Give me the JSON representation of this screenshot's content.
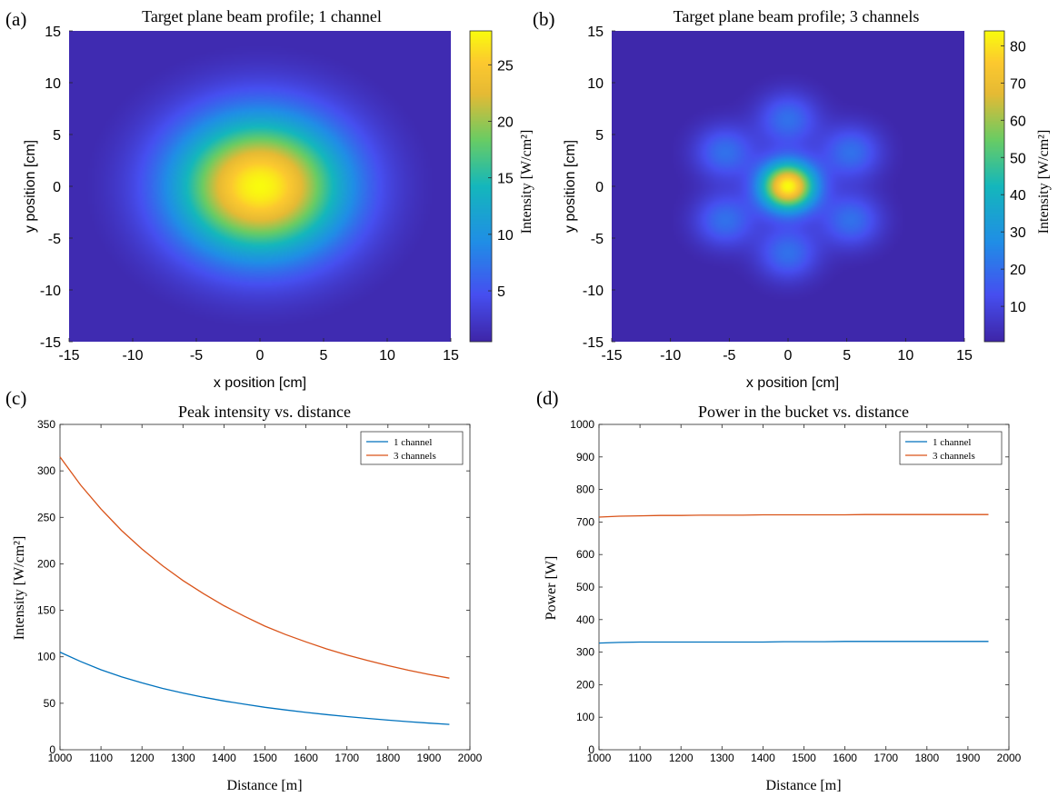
{
  "panels": {
    "a": {
      "tag": "(a)",
      "chart_data": {
        "type": "heatmap",
        "title": "Target plane beam profile; 1 channel",
        "xlabel": "x position [cm]",
        "ylabel": "y position [cm]",
        "colorbar_label": "Intensity [W/cm²]",
        "xlim": [
          -15,
          15
        ],
        "ylim": [
          -15,
          15
        ],
        "xticks": [
          -15,
          -10,
          -5,
          0,
          5,
          10,
          15
        ],
        "yticks": [
          -15,
          -10,
          -5,
          0,
          5,
          10,
          15
        ],
        "clim": [
          0.5,
          28
        ],
        "colorbar_ticks": [
          5,
          10,
          15,
          20,
          25
        ],
        "colormap": "parula",
        "peak_intensity": 28,
        "lobes": [
          {
            "x": 0,
            "y": 0,
            "width": 4.9,
            "amplitude": 1.0
          }
        ]
      }
    },
    "b": {
      "tag": "(b)",
      "chart_data": {
        "type": "heatmap",
        "title": "Target plane beam profile; 3 channels",
        "xlabel": "x position [cm]",
        "ylabel": "y position [cm]",
        "colorbar_label": "Intensity [W/cm²]",
        "xlim": [
          -15,
          15
        ],
        "ylim": [
          -15,
          15
        ],
        "xticks": [
          -15,
          -10,
          -5,
          0,
          5,
          10,
          15
        ],
        "yticks": [
          -15,
          -10,
          -5,
          0,
          5,
          10,
          15
        ],
        "clim": [
          0.5,
          84
        ],
        "colorbar_ticks": [
          10,
          20,
          30,
          40,
          50,
          60,
          70,
          80
        ],
        "colormap": "parula",
        "peak_intensity": 84,
        "lobes": [
          {
            "x": 0,
            "y": 0,
            "width": 1.7,
            "amplitude": 1.0
          },
          {
            "x": 0,
            "y": 6.5,
            "width": 1.8,
            "amplitude": 0.24
          },
          {
            "x": 0,
            "y": -6.5,
            "width": 1.8,
            "amplitude": 0.24
          },
          {
            "x": 5.4,
            "y": 3.3,
            "width": 1.8,
            "amplitude": 0.24
          },
          {
            "x": -5.4,
            "y": 3.3,
            "width": 1.8,
            "amplitude": 0.24
          },
          {
            "x": 5.4,
            "y": -3.3,
            "width": 1.8,
            "amplitude": 0.24
          },
          {
            "x": -5.4,
            "y": -3.3,
            "width": 1.8,
            "amplitude": 0.24
          }
        ]
      }
    },
    "c": {
      "tag": "(c)",
      "chart_data": {
        "type": "line",
        "title": "Peak intensity vs. distance",
        "xlabel": "Distance [m]",
        "ylabel": "Intensity [W/cm²]",
        "xlim": [
          1000,
          2000
        ],
        "ylim": [
          0,
          350
        ],
        "xticks": [
          1000,
          1100,
          1200,
          1300,
          1400,
          1500,
          1600,
          1700,
          1800,
          1900,
          2000
        ],
        "yticks": [
          0,
          50,
          100,
          150,
          200,
          250,
          300,
          350
        ],
        "legend_position": "top-right",
        "x": [
          1000,
          1050,
          1100,
          1150,
          1200,
          1250,
          1300,
          1350,
          1400,
          1450,
          1500,
          1550,
          1600,
          1650,
          1700,
          1750,
          1800,
          1850,
          1900,
          1950
        ],
        "series": [
          {
            "name": "1 channel",
            "color": "#0072bd",
            "values": [
              105,
              95,
              86,
              78.5,
              72,
              66,
              61,
              56.5,
              52.5,
              49,
              45.7,
              42.8,
              40.2,
              37.8,
              35.7,
              33.7,
              31.9,
              30.2,
              28.6,
              27.3
            ]
          },
          {
            "name": "3 channels",
            "color": "#d95319",
            "values": [
              315,
              285,
              259,
              236,
              216,
              198,
              182,
              168,
              155,
              143.5,
              133,
              124,
              116,
              108.5,
              102,
              96,
              90.5,
              85.5,
              81,
              77
            ]
          }
        ]
      }
    },
    "d": {
      "tag": "(d)",
      "chart_data": {
        "type": "line",
        "title": "Power in the bucket vs. distance",
        "xlabel": "Distance [m]",
        "ylabel": "Power [W]",
        "xlim": [
          1000,
          2000
        ],
        "ylim": [
          0,
          1000
        ],
        "xticks": [
          1000,
          1100,
          1200,
          1300,
          1400,
          1500,
          1600,
          1700,
          1800,
          1900,
          2000
        ],
        "yticks": [
          0,
          100,
          200,
          300,
          400,
          500,
          600,
          700,
          800,
          900,
          1000
        ],
        "legend_position": "top-right",
        "x": [
          1000,
          1050,
          1100,
          1150,
          1200,
          1250,
          1300,
          1350,
          1400,
          1450,
          1500,
          1550,
          1600,
          1650,
          1700,
          1750,
          1800,
          1850,
          1900,
          1950
        ],
        "series": [
          {
            "name": "1 channel",
            "color": "#0072bd",
            "values": [
              328,
              330,
              331,
              331,
              331,
              331,
              331,
              331,
              331,
              332,
              332,
              332,
              333,
              333,
              333,
              333,
              333,
              333,
              333,
              333
            ]
          },
          {
            "name": "3 channels",
            "color": "#d95319",
            "values": [
              715,
              718,
              719,
              720,
              720,
              721,
              721,
              721,
              722,
              722,
              722,
              722,
              722,
              723,
              723,
              723,
              723,
              723,
              723,
              723
            ]
          }
        ]
      }
    }
  }
}
